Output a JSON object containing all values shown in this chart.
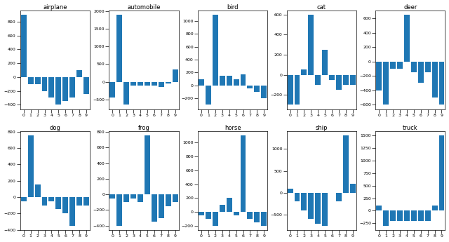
{
  "titles": [
    "airplane",
    "automobile",
    "bird",
    "cat",
    "deer",
    "dog",
    "frog",
    "horse",
    "ship",
    "truck"
  ],
  "bar_color": "#1f77b4",
  "plot_data": {
    "airplane": [
      900,
      -100,
      -100,
      -200,
      -300,
      -400,
      -350,
      -300,
      100,
      -250
    ],
    "automobile": [
      -450,
      1900,
      -650,
      -100,
      -100,
      -100,
      -100,
      -150,
      -50,
      350
    ],
    "bird": [
      100,
      -300,
      1100,
      150,
      150,
      100,
      175,
      -50,
      -100,
      -200
    ],
    "cat": [
      -300,
      -300,
      50,
      600,
      -100,
      250,
      -50,
      -150,
      -100,
      -100
    ],
    "deer": [
      -400,
      -600,
      -100,
      -100,
      650,
      -150,
      -300,
      -150,
      -500,
      -600
    ],
    "dog": [
      -50,
      750,
      150,
      -100,
      -50,
      -150,
      -200,
      -350,
      -100,
      -100
    ],
    "frog": [
      -50,
      -400,
      -100,
      -50,
      -100,
      750,
      -350,
      -300,
      -150,
      -100
    ],
    "horse": [
      -50,
      -100,
      -200,
      100,
      200,
      -50,
      1100,
      -100,
      -150,
      -200
    ],
    "ship": [
      100,
      -200,
      -400,
      -600,
      -700,
      -750,
      0,
      -200,
      1300,
      200
    ],
    "truck": [
      100,
      -300,
      -200,
      -200,
      -200,
      -200,
      -200,
      -200,
      100,
      1500
    ]
  },
  "xticks": [
    0,
    1,
    2,
    3,
    4,
    5,
    6,
    7,
    8,
    9
  ],
  "figsize": [
    6.4,
    3.45
  ],
  "dpi": 100
}
